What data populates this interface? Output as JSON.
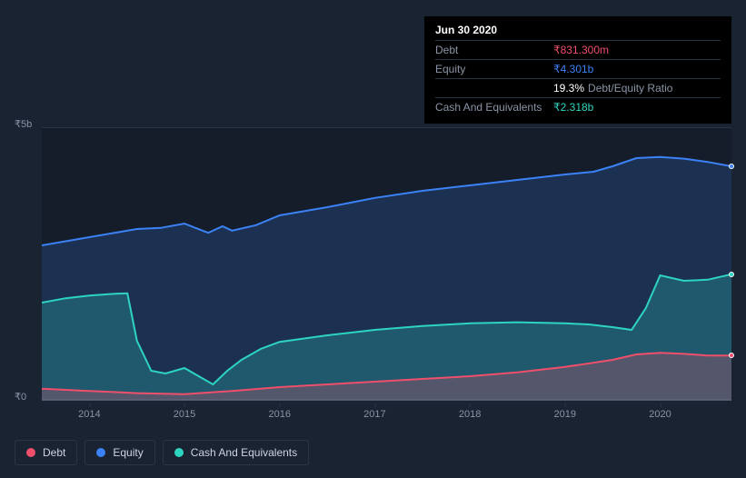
{
  "tooltip": {
    "date": "Jun 30 2020",
    "rows": [
      {
        "label": "Debt",
        "value": "₹831.300m",
        "color": "#ef4f6b"
      },
      {
        "label": "Equity",
        "value": "₹4.301b",
        "color": "#3b82f6"
      },
      {
        "label": "",
        "value": "19.3%",
        "suffix": "Debt/Equity Ratio",
        "color": "#ffffff"
      },
      {
        "label": "Cash And Equivalents",
        "value": "₹2.318b",
        "color": "#2dd4bf"
      }
    ]
  },
  "chart": {
    "type": "area",
    "background_color": "#151d2a",
    "page_background": "#1a2332",
    "grid_color": "#2a3442",
    "text_color": "#8a94a6",
    "y_labels": [
      {
        "text": "₹5b",
        "y": 0
      },
      {
        "text": "₹0",
        "y": 300
      }
    ],
    "x_labels": [
      "2014",
      "2015",
      "2016",
      "2017",
      "2018",
      "2019",
      "2020"
    ],
    "x_range": [
      2013.5,
      2020.75
    ],
    "y_range": [
      0,
      5
    ],
    "series": {
      "equity": {
        "color": "#3b82f6",
        "fill": "rgba(59,130,246,0.20)",
        "data": [
          [
            2013.5,
            2.85
          ],
          [
            2014.0,
            3.0
          ],
          [
            2014.5,
            3.15
          ],
          [
            2014.75,
            3.17
          ],
          [
            2015.0,
            3.25
          ],
          [
            2015.1,
            3.18
          ],
          [
            2015.25,
            3.08
          ],
          [
            2015.4,
            3.2
          ],
          [
            2015.5,
            3.12
          ],
          [
            2015.75,
            3.22
          ],
          [
            2016.0,
            3.4
          ],
          [
            2016.5,
            3.55
          ],
          [
            2017.0,
            3.72
          ],
          [
            2017.5,
            3.85
          ],
          [
            2018.0,
            3.95
          ],
          [
            2018.5,
            4.05
          ],
          [
            2019.0,
            4.15
          ],
          [
            2019.3,
            4.2
          ],
          [
            2019.5,
            4.3
          ],
          [
            2019.75,
            4.45
          ],
          [
            2020.0,
            4.47
          ],
          [
            2020.25,
            4.44
          ],
          [
            2020.5,
            4.38
          ],
          [
            2020.75,
            4.3
          ]
        ]
      },
      "cash": {
        "color": "#2dd4bf",
        "fill": "rgba(45,212,191,0.25)",
        "data": [
          [
            2013.5,
            1.8
          ],
          [
            2013.75,
            1.88
          ],
          [
            2014.0,
            1.93
          ],
          [
            2014.25,
            1.96
          ],
          [
            2014.4,
            1.97
          ],
          [
            2014.5,
            1.1
          ],
          [
            2014.65,
            0.55
          ],
          [
            2014.8,
            0.5
          ],
          [
            2015.0,
            0.6
          ],
          [
            2015.15,
            0.45
          ],
          [
            2015.3,
            0.3
          ],
          [
            2015.45,
            0.55
          ],
          [
            2015.6,
            0.75
          ],
          [
            2015.8,
            0.95
          ],
          [
            2016.0,
            1.08
          ],
          [
            2016.5,
            1.2
          ],
          [
            2017.0,
            1.3
          ],
          [
            2017.5,
            1.37
          ],
          [
            2018.0,
            1.42
          ],
          [
            2018.5,
            1.44
          ],
          [
            2019.0,
            1.42
          ],
          [
            2019.25,
            1.4
          ],
          [
            2019.5,
            1.35
          ],
          [
            2019.7,
            1.3
          ],
          [
            2019.85,
            1.7
          ],
          [
            2020.0,
            2.3
          ],
          [
            2020.25,
            2.2
          ],
          [
            2020.5,
            2.22
          ],
          [
            2020.75,
            2.32
          ]
        ]
      },
      "debt": {
        "color": "#ef4f6b",
        "fill": "rgba(239,79,107,0.25)",
        "data": [
          [
            2013.5,
            0.22
          ],
          [
            2014.0,
            0.18
          ],
          [
            2014.5,
            0.14
          ],
          [
            2015.0,
            0.12
          ],
          [
            2015.5,
            0.18
          ],
          [
            2016.0,
            0.25
          ],
          [
            2016.5,
            0.3
          ],
          [
            2017.0,
            0.35
          ],
          [
            2017.5,
            0.4
          ],
          [
            2018.0,
            0.45
          ],
          [
            2018.5,
            0.52
          ],
          [
            2019.0,
            0.62
          ],
          [
            2019.5,
            0.75
          ],
          [
            2019.75,
            0.85
          ],
          [
            2020.0,
            0.88
          ],
          [
            2020.25,
            0.86
          ],
          [
            2020.5,
            0.83
          ],
          [
            2020.75,
            0.83
          ]
        ]
      }
    },
    "legend": [
      {
        "label": "Debt",
        "color": "#ef4f6b"
      },
      {
        "label": "Equity",
        "color": "#3b82f6"
      },
      {
        "label": "Cash And Equivalents",
        "color": "#2dd4bf"
      }
    ]
  }
}
